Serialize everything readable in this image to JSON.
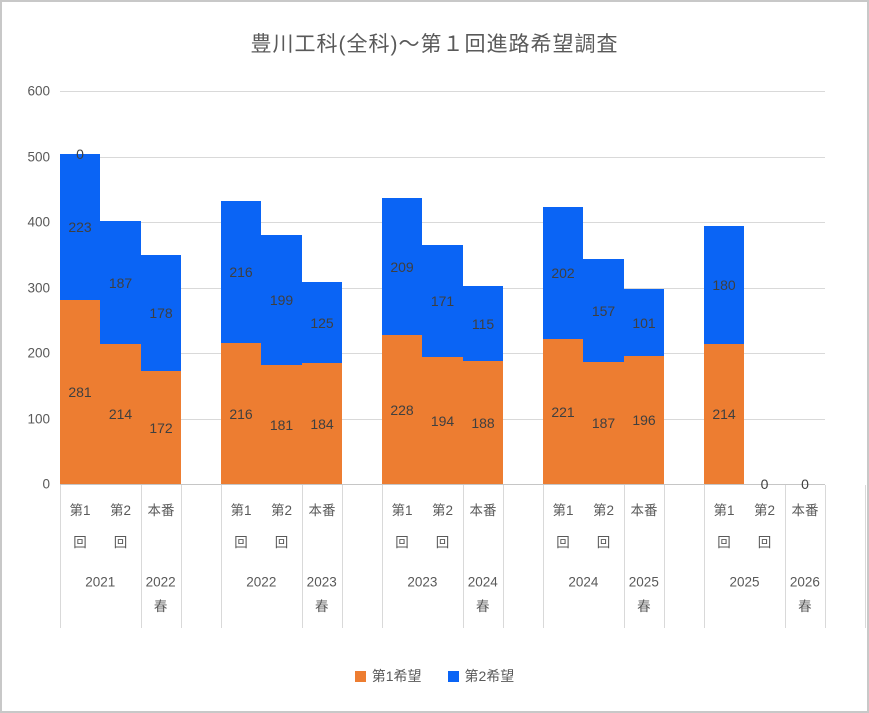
{
  "chart_data": {
    "type": "bar",
    "stacked": true,
    "title": "豊川工科(全科)～第１回進路希望調査",
    "xlabel": "",
    "ylabel": "",
    "ylim": [
      0,
      600
    ],
    "yticks": [
      0,
      100,
      200,
      300,
      400,
      500,
      600
    ],
    "grid": "horizontal",
    "legend_position": "bottom-center",
    "series": [
      {
        "name": "第1希望",
        "color": "#ED7D31",
        "values": [
          281,
          214,
          172,
          216,
          181,
          184,
          228,
          194,
          188,
          221,
          187,
          196,
          214,
          0,
          0
        ]
      },
      {
        "name": "第2希望",
        "color": "#0A64F5",
        "values": [
          223,
          187,
          178,
          216,
          199,
          125,
          209,
          171,
          115,
          202,
          157,
          101,
          180,
          0,
          0
        ]
      }
    ],
    "categories": [
      "第1回",
      "第2回",
      "本番",
      "第1回",
      "第2回",
      "本番",
      "第1回",
      "第2回",
      "本番",
      "第1回",
      "第2回",
      "本番",
      "第1回",
      "第2回",
      "本番"
    ],
    "groups": [
      {
        "year_label": "2021",
        "spring_label": [
          "2022",
          "春"
        ],
        "bars": [
          {
            "cat": [
              "第1",
              "回"
            ],
            "first": 281,
            "second": 223,
            "outside_label": "0"
          },
          {
            "cat": [
              "第2",
              "回"
            ],
            "first": 214,
            "second": 187
          },
          {
            "cat": [
              "本番"
            ],
            "first": 172,
            "second": 178
          }
        ]
      },
      {
        "year_label": "2022",
        "spring_label": [
          "2023",
          "春"
        ],
        "bars": [
          {
            "cat": [
              "第1",
              "回"
            ],
            "first": 216,
            "second": 216
          },
          {
            "cat": [
              "第2",
              "回"
            ],
            "first": 181,
            "second": 199
          },
          {
            "cat": [
              "本番"
            ],
            "first": 184,
            "second": 125
          }
        ]
      },
      {
        "year_label": "2023",
        "spring_label": [
          "2024",
          "春"
        ],
        "bars": [
          {
            "cat": [
              "第1",
              "回"
            ],
            "first": 228,
            "second": 209
          },
          {
            "cat": [
              "第2",
              "回"
            ],
            "first": 194,
            "second": 171
          },
          {
            "cat": [
              "本番"
            ],
            "first": 188,
            "second": 115
          }
        ]
      },
      {
        "year_label": "2024",
        "spring_label": [
          "2025",
          "春"
        ],
        "bars": [
          {
            "cat": [
              "第1",
              "回"
            ],
            "first": 221,
            "second": 202
          },
          {
            "cat": [
              "第2",
              "回"
            ],
            "first": 187,
            "second": 157
          },
          {
            "cat": [
              "本番"
            ],
            "first": 196,
            "second": 101
          }
        ]
      },
      {
        "year_label": "2025",
        "spring_label": [
          "2026",
          "春"
        ],
        "bars": [
          {
            "cat": [
              "第1",
              "回"
            ],
            "first": 214,
            "second": 180
          },
          {
            "cat": [
              "第2",
              "回"
            ],
            "first": 0,
            "second": 0,
            "outside_label": "0"
          },
          {
            "cat": [
              "本番"
            ],
            "first": 0,
            "second": 0,
            "outside_label": "0"
          }
        ]
      }
    ]
  },
  "colors": {
    "first_choice": "#ED7D31",
    "second_choice": "#0A64F5",
    "gridline": "#D9D9D9",
    "axis_line": "#C6C6C6",
    "axis_text": "#595959",
    "data_label": "#3F3F3F",
    "chart_border": "#C8C8C8",
    "background": "#FFFFFF"
  }
}
